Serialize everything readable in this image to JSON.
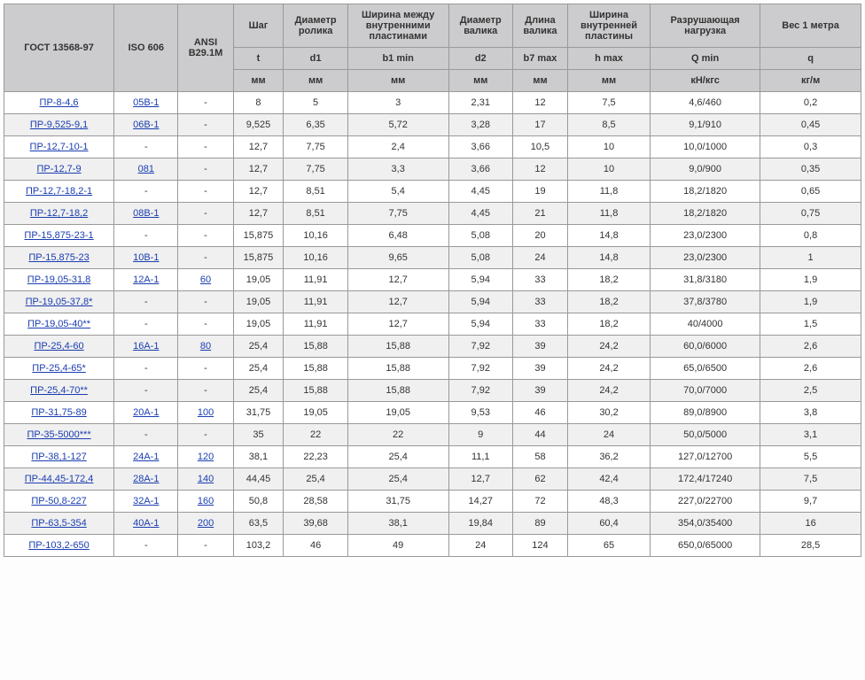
{
  "table": {
    "header": {
      "gost": "ГОСТ 13568-97",
      "iso": "ISO 606",
      "ansi": "ANSI B29.1M",
      "t": {
        "top": "Шаг",
        "sym": "t",
        "unit": "мм"
      },
      "d1": {
        "top": "Диаметр ролика",
        "sym": "d1",
        "unit": "мм"
      },
      "b1": {
        "top": "Ширина между внутренними пластинами",
        "sym": "b1 min",
        "unit": "мм"
      },
      "d2": {
        "top": "Диаметр валика",
        "sym": "d2",
        "unit": "мм"
      },
      "b7": {
        "top": "Длина валика",
        "sym": "b7 max",
        "unit": "мм"
      },
      "h": {
        "top": "Ширина внутренней пластины",
        "sym": "h max",
        "unit": "мм"
      },
      "Qmin": {
        "top": "Разрушающая нагрузка",
        "sym": "Q min",
        "unit": "кН/кгс"
      },
      "q": {
        "top": "Вес 1 метра",
        "sym": "q",
        "unit": "кг/м"
      }
    },
    "rows": [
      {
        "gost": "ПР-8-4,6",
        "gost_link": true,
        "iso": "05B-1",
        "iso_link": true,
        "ansi": "-",
        "t": "8",
        "d1": "5",
        "b1": "3",
        "d2": "2,31",
        "b7": "12",
        "h": "7,5",
        "Qmin": "4,6/460",
        "q": "0,2"
      },
      {
        "gost": "ПР-9,525-9,1",
        "gost_link": true,
        "iso": "06B-1",
        "iso_link": true,
        "ansi": "-",
        "t": "9,525",
        "d1": "6,35",
        "b1": "5,72",
        "d2": "3,28",
        "b7": "17",
        "h": "8,5",
        "Qmin": "9,1/910",
        "q": "0,45"
      },
      {
        "gost": "ПР-12,7-10-1",
        "gost_link": true,
        "iso": "-",
        "iso_link": false,
        "ansi": "-",
        "t": "12,7",
        "d1": "7,75",
        "b1": "2,4",
        "d2": "3,66",
        "b7": "10,5",
        "h": "10",
        "Qmin": "10,0/1000",
        "q": "0,3"
      },
      {
        "gost": "ПР-12,7-9",
        "gost_link": true,
        "iso": "081",
        "iso_link": true,
        "ansi": "-",
        "t": "12,7",
        "d1": "7,75",
        "b1": "3,3",
        "d2": "3,66",
        "b7": "12",
        "h": "10",
        "Qmin": "9,0/900",
        "q": "0,35"
      },
      {
        "gost": "ПР-12,7-18,2-1",
        "gost_link": true,
        "iso": "-",
        "iso_link": false,
        "ansi": "-",
        "t": "12,7",
        "d1": "8,51",
        "b1": "5,4",
        "d2": "4,45",
        "b7": "19",
        "h": "11,8",
        "Qmin": "18,2/1820",
        "q": "0,65"
      },
      {
        "gost": "ПР-12,7-18,2",
        "gost_link": true,
        "iso": "08B-1",
        "iso_link": true,
        "ansi": "-",
        "t": "12,7",
        "d1": "8,51",
        "b1": "7,75",
        "d2": "4,45",
        "b7": "21",
        "h": "11,8",
        "Qmin": "18,2/1820",
        "q": "0,75"
      },
      {
        "gost": "ПР-15,875-23-1",
        "gost_link": true,
        "iso": "-",
        "iso_link": false,
        "ansi": "-",
        "t": "15,875",
        "d1": "10,16",
        "b1": "6,48",
        "d2": "5,08",
        "b7": "20",
        "h": "14,8",
        "Qmin": "23,0/2300",
        "q": "0,8"
      },
      {
        "gost": "ПР-15,875-23",
        "gost_link": true,
        "iso": "10B-1",
        "iso_link": true,
        "ansi": "-",
        "t": "15,875",
        "d1": "10,16",
        "b1": "9,65",
        "d2": "5,08",
        "b7": "24",
        "h": "14,8",
        "Qmin": "23,0/2300",
        "q": "1"
      },
      {
        "gost": "ПР-19,05-31,8",
        "gost_link": true,
        "iso": "12A-1",
        "iso_link": true,
        "ansi": "60",
        "ansi_link": true,
        "t": "19,05",
        "d1": "11,91",
        "b1": "12,7",
        "d2": "5,94",
        "b7": "33",
        "h": "18,2",
        "Qmin": "31,8/3180",
        "q": "1,9"
      },
      {
        "gost": "ПР-19,05-37,8*",
        "gost_link": true,
        "iso": "-",
        "iso_link": false,
        "ansi": "-",
        "t": "19,05",
        "d1": "11,91",
        "b1": "12,7",
        "d2": "5,94",
        "b7": "33",
        "h": "18,2",
        "Qmin": "37,8/3780",
        "q": "1,9"
      },
      {
        "gost": "ПР-19,05-40**",
        "gost_link": true,
        "iso": "-",
        "iso_link": false,
        "ansi": "-",
        "t": "19,05",
        "d1": "11,91",
        "b1": "12,7",
        "d2": "5,94",
        "b7": "33",
        "h": "18,2",
        "Qmin": "40/4000",
        "q": "1,5"
      },
      {
        "gost": "ПР-25,4-60",
        "gost_link": true,
        "iso": "16A-1",
        "iso_link": true,
        "ansi": "80",
        "ansi_link": true,
        "t": "25,4",
        "d1": "15,88",
        "b1": "15,88",
        "d2": "7,92",
        "b7": "39",
        "h": "24,2",
        "Qmin": "60,0/6000",
        "q": "2,6"
      },
      {
        "gost": "ПР-25,4-65*",
        "gost_link": true,
        "iso": "-",
        "iso_link": false,
        "ansi": "-",
        "t": "25,4",
        "d1": "15,88",
        "b1": "15,88",
        "d2": "7,92",
        "b7": "39",
        "h": "24,2",
        "Qmin": "65,0/6500",
        "q": "2,6"
      },
      {
        "gost": "ПР-25,4-70**",
        "gost_link": true,
        "iso": "-",
        "iso_link": false,
        "ansi": "-",
        "t": "25,4",
        "d1": "15,88",
        "b1": "15,88",
        "d2": "7,92",
        "b7": "39",
        "h": "24,2",
        "Qmin": "70,0/7000",
        "q": "2,5"
      },
      {
        "gost": "ПР-31,75-89",
        "gost_link": true,
        "iso": "20A-1",
        "iso_link": true,
        "ansi": "100",
        "ansi_link": true,
        "t": "31,75",
        "d1": "19,05",
        "b1": "19,05",
        "d2": "9,53",
        "b7": "46",
        "h": "30,2",
        "Qmin": "89,0/8900",
        "q": "3,8"
      },
      {
        "gost": "ПР-35-5000***",
        "gost_link": true,
        "iso": "-",
        "iso_link": false,
        "ansi": "-",
        "t": "35",
        "d1": "22",
        "b1": "22",
        "d2": "9",
        "b7": "44",
        "h": "24",
        "Qmin": "50,0/5000",
        "q": "3,1"
      },
      {
        "gost": "ПР-38,1-127",
        "gost_link": true,
        "iso": "24A-1",
        "iso_link": true,
        "ansi": "120",
        "ansi_link": true,
        "t": "38,1",
        "d1": "22,23",
        "b1": "25,4",
        "d2": "11,1",
        "b7": "58",
        "h": "36,2",
        "Qmin": "127,0/12700",
        "q": "5,5"
      },
      {
        "gost": "ПР-44,45-172,4",
        "gost_link": true,
        "iso": "28A-1",
        "iso_link": true,
        "ansi": "140",
        "ansi_link": true,
        "t": "44,45",
        "d1": "25,4",
        "b1": "25,4",
        "d2": "12,7",
        "b7": "62",
        "h": "42,4",
        "Qmin": "172,4/17240",
        "q": "7,5"
      },
      {
        "gost": "ПР-50,8-227",
        "gost_link": true,
        "iso": "32A-1",
        "iso_link": true,
        "ansi": "160",
        "ansi_link": true,
        "t": "50,8",
        "d1": "28,58",
        "b1": "31,75",
        "d2": "14,27",
        "b7": "72",
        "h": "48,3",
        "Qmin": "227,0/22700",
        "q": "9,7"
      },
      {
        "gost": "ПР-63,5-354",
        "gost_link": true,
        "iso": "40A-1",
        "iso_link": true,
        "ansi": "200",
        "ansi_link": true,
        "t": "63,5",
        "d1": "39,68",
        "b1": "38,1",
        "d2": "19,84",
        "b7": "89",
        "h": "60,4",
        "Qmin": "354,0/35400",
        "q": "16"
      },
      {
        "gost": "ПР-103,2-650",
        "gost_link": true,
        "iso": "-",
        "iso_link": false,
        "ansi": "-",
        "t": "103,2",
        "d1": "46",
        "b1": "49",
        "d2": "24",
        "b7": "124",
        "h": "65",
        "Qmin": "650,0/65000",
        "q": "28,5"
      }
    ]
  }
}
